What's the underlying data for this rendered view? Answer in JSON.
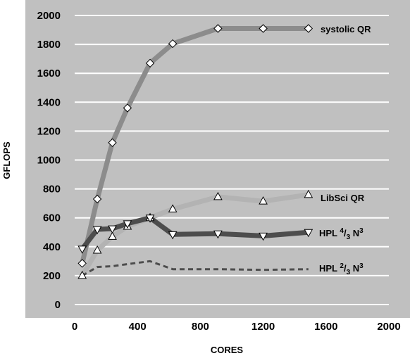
{
  "chart_data": {
    "type": "line",
    "title": "",
    "xlabel": "CORES",
    "ylabel": "GFLOPS",
    "xlim": [
      0,
      2000
    ],
    "ylim": [
      0,
      2000
    ],
    "xticks": [
      0,
      400,
      800,
      1200,
      1600,
      2000
    ],
    "yticks": [
      0,
      200,
      400,
      600,
      800,
      1000,
      1200,
      1400,
      1600,
      1800,
      2000
    ],
    "grid": "horizontal",
    "plot_background": "#c0c0c0",
    "gridline_color": "#ffffff",
    "series": [
      {
        "name": "systolic QR",
        "label_parts": [
          "systolic QR"
        ],
        "color": "#8c8c8c",
        "marker": "diamond",
        "line_style": "solid",
        "x": [
          48,
          144,
          240,
          336,
          480,
          624,
          912,
          1200,
          1488
        ],
        "y": [
          285,
          730,
          1120,
          1360,
          1670,
          1805,
          1910,
          1910,
          1910
        ]
      },
      {
        "name": "LibSci QR",
        "label_parts": [
          "LibSci QR"
        ],
        "color": "#b3b3b3",
        "marker": "triangle-up",
        "line_style": "solid",
        "x": [
          48,
          144,
          240,
          336,
          480,
          624,
          912,
          1200,
          1488
        ],
        "y": [
          200,
          375,
          470,
          540,
          600,
          660,
          745,
          715,
          760
        ]
      },
      {
        "name": "HPL 4/3 N3",
        "label_parts": [
          "HPL ",
          "4",
          "/",
          "3",
          " N",
          "3"
        ],
        "color": "#4d4d4d",
        "marker": "triangle-down",
        "line_style": "solid",
        "x": [
          48,
          144,
          240,
          336,
          480,
          624,
          912,
          1200,
          1488
        ],
        "y": [
          385,
          520,
          525,
          560,
          600,
          485,
          490,
          475,
          500
        ]
      },
      {
        "name": "HPL 2/3 N3",
        "label_parts": [
          "HPL ",
          "2",
          "/",
          "3",
          " N",
          "3"
        ],
        "color": "#4d4d4d",
        "marker": "none",
        "line_style": "dashed",
        "x": [
          48,
          144,
          240,
          336,
          480,
          624,
          912,
          1200,
          1488
        ],
        "y": [
          200,
          260,
          265,
          280,
          300,
          245,
          245,
          240,
          245
        ]
      }
    ]
  }
}
